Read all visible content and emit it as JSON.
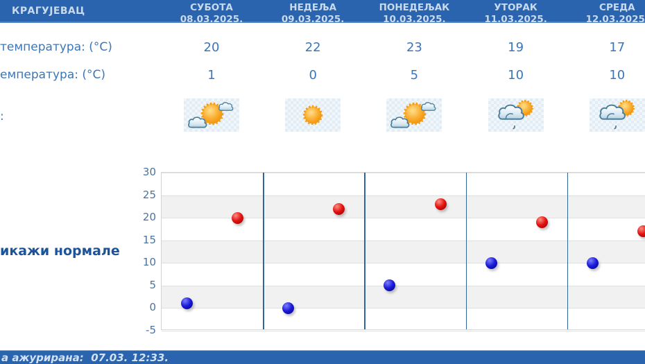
{
  "location": "КРАГУЈЕВАЦ",
  "header": {
    "days": [
      {
        "name": "СУБОТА",
        "date": "08.03.2025."
      },
      {
        "name": "НЕДЕЉА",
        "date": "09.03.2025."
      },
      {
        "name": "ПОНЕДЕЉАК",
        "date": "10.03.2025."
      },
      {
        "name": "УТОРАК",
        "date": "11.03.2025."
      },
      {
        "name": "СРЕДА",
        "date": "12.03.2025."
      }
    ]
  },
  "rows": {
    "max_label": "температура: (°C)",
    "min_label": "емпература: (°C)",
    "icons_label": ":",
    "max_values": [
      "20",
      "22",
      "23",
      "19",
      "17"
    ],
    "min_values": [
      "1",
      "0",
      "5",
      "10",
      "10"
    ],
    "icons": [
      "sun-clouds",
      "sun",
      "sun-clouds",
      "cloud-sun-drizzle",
      "cloud-sun-drizzle"
    ]
  },
  "normals_link_label": "икажи нормале",
  "footer": {
    "text": "а ажурирана:  07.03. 12:33."
  },
  "colors": {
    "header_bg": "#2a64ae",
    "header_text": "#c8daee",
    "body_text": "#3b76b8",
    "axis_text": "#49739f",
    "normals_link": "#1d5499",
    "max_marker": "#cc1111",
    "min_marker": "#1111cc",
    "band_gray": "#f1f1f1",
    "day_separator": "#2f6699"
  },
  "chart_data": {
    "type": "scatter",
    "categories": [
      "08.03.2025.",
      "09.03.2025.",
      "10.03.2025.",
      "11.03.2025.",
      "12.03.2025."
    ],
    "series": [
      {
        "name": "max",
        "color": "#cc1111",
        "values": [
          20,
          22,
          23,
          19,
          17
        ]
      },
      {
        "name": "min",
        "color": "#1111cc",
        "values": [
          1,
          0,
          5,
          10,
          10
        ]
      }
    ],
    "title": "",
    "xlabel": "",
    "ylabel": "",
    "ylim": [
      -5,
      30
    ],
    "yticks": [
      30,
      25,
      20,
      15,
      10,
      5,
      0,
      -5
    ],
    "grid": "horizontal-bands",
    "legend": "none"
  }
}
